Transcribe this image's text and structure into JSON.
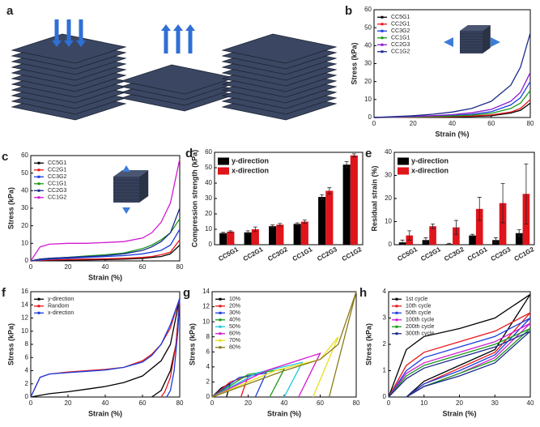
{
  "illustration": {
    "panel": "a"
  },
  "chart_data": [
    {
      "panel": "b",
      "type": "line",
      "xlabel": "Strain (%)",
      "ylabel": "Stress (kPa)",
      "xlim": [
        0,
        80
      ],
      "xticks": [
        0,
        20,
        40,
        60,
        80
      ],
      "ylim": [
        0,
        60
      ],
      "yticks": [
        0,
        10,
        20,
        30,
        40,
        50,
        60
      ],
      "legend": "upper left",
      "series": [
        {
          "name": "CC5G1",
          "color": "#000000",
          "x": [
            0,
            10,
            20,
            30,
            40,
            50,
            60,
            70,
            75,
            80
          ],
          "values": [
            0,
            0.1,
            0.2,
            0.3,
            0.4,
            0.6,
            1,
            2.5,
            4,
            8
          ]
        },
        {
          "name": "CC2G1",
          "color": "#e8161b",
          "x": [
            0,
            10,
            20,
            30,
            40,
            50,
            60,
            70,
            75,
            80
          ],
          "values": [
            0,
            0.1,
            0.2,
            0.3,
            0.5,
            0.8,
            1.4,
            3,
            5,
            10
          ]
        },
        {
          "name": "CC3G2",
          "color": "#1a3ee0",
          "x": [
            0,
            10,
            20,
            30,
            40,
            50,
            60,
            70,
            75,
            80
          ],
          "values": [
            0,
            0.2,
            0.4,
            0.7,
            1.1,
            1.8,
            3.2,
            7,
            11,
            20
          ]
        },
        {
          "name": "CC1G1",
          "color": "#1a9a1a",
          "x": [
            0,
            10,
            20,
            30,
            40,
            50,
            60,
            70,
            75,
            80
          ],
          "values": [
            0,
            0.2,
            0.3,
            0.5,
            0.8,
            1.3,
            2.3,
            5,
            8,
            15
          ]
        },
        {
          "name": "CC2G3",
          "color": "#8a1ad0",
          "x": [
            0,
            10,
            20,
            30,
            40,
            50,
            60,
            70,
            75,
            80
          ],
          "values": [
            0,
            0.3,
            0.6,
            1,
            1.6,
            2.6,
            4.5,
            9,
            14,
            25
          ]
        },
        {
          "name": "CC1G2",
          "color": "#1a2a8a",
          "x": [
            0,
            10,
            20,
            30,
            40,
            50,
            60,
            70,
            75,
            80
          ],
          "values": [
            0,
            0.5,
            1,
            1.8,
            3,
            5,
            9,
            18,
            28,
            47
          ]
        }
      ]
    },
    {
      "panel": "c",
      "type": "line",
      "xlabel": "Strain (%)",
      "ylabel": "Stress (kPa)",
      "xlim": [
        0,
        80
      ],
      "xticks": [
        0,
        20,
        40,
        60,
        80
      ],
      "ylim": [
        0,
        60
      ],
      "yticks": [
        0,
        10,
        20,
        30,
        40,
        50,
        60
      ],
      "legend": "upper left",
      "series": [
        {
          "name": "CC5G1",
          "color": "#000000",
          "x": [
            0,
            5,
            10,
            20,
            30,
            40,
            50,
            60,
            65,
            70,
            75,
            80
          ],
          "values": [
            0,
            0.2,
            0.3,
            0.5,
            0.6,
            0.8,
            1,
            1.5,
            2,
            2.5,
            4,
            9
          ]
        },
        {
          "name": "CC2G1",
          "color": "#e8161b",
          "x": [
            0,
            5,
            10,
            20,
            30,
            40,
            50,
            60,
            65,
            70,
            75,
            80
          ],
          "values": [
            0,
            0.3,
            0.5,
            0.8,
            1,
            1.2,
            1.5,
            2,
            2.5,
            3.5,
            5,
            12
          ]
        },
        {
          "name": "CC3G2",
          "color": "#1a3ee0",
          "x": [
            0,
            5,
            10,
            20,
            30,
            40,
            50,
            60,
            65,
            70,
            75,
            80
          ],
          "values": [
            0,
            0.5,
            1,
            1.5,
            2,
            2.5,
            3,
            4,
            5,
            6,
            9,
            18
          ]
        },
        {
          "name": "CC1G1",
          "color": "#1a9a1a",
          "x": [
            0,
            5,
            10,
            20,
            30,
            40,
            50,
            60,
            65,
            70,
            75,
            80
          ],
          "values": [
            0,
            1,
            1.5,
            2,
            2.8,
            3.5,
            4.5,
            7,
            9,
            12,
            16,
            24
          ]
        },
        {
          "name": "CC2G3",
          "color": "#1a2a8a",
          "x": [
            0,
            5,
            10,
            20,
            30,
            40,
            50,
            60,
            65,
            70,
            75,
            80
          ],
          "values": [
            0,
            1,
            1.5,
            2,
            2.5,
            3,
            4,
            6,
            8,
            11,
            16,
            30
          ]
        },
        {
          "name": "CC1G2",
          "color": "#d21ad2",
          "x": [
            0,
            5,
            10,
            20,
            30,
            40,
            50,
            60,
            65,
            70,
            75,
            80
          ],
          "values": [
            0,
            8,
            9.5,
            10,
            10,
            10.5,
            11,
            13,
            16,
            22,
            33,
            58
          ]
        }
      ]
    },
    {
      "panel": "d",
      "type": "bar",
      "ylabel": "Compression strength (kPa)",
      "ylim": [
        0,
        60
      ],
      "yticks": [
        0,
        10,
        20,
        30,
        40,
        50,
        60
      ],
      "legend": "upper left",
      "categories": [
        "CC5G1",
        "CC2G1",
        "CC3G2",
        "CC1G1",
        "CC2G3",
        "CC1G2"
      ],
      "series": [
        {
          "name": "y-direction",
          "color": "#000000",
          "values": [
            7.5,
            8,
            12,
            13.5,
            31,
            52
          ],
          "errors": [
            0.5,
            1,
            0.8,
            0.7,
            1.5,
            2
          ]
        },
        {
          "name": "x-direction",
          "color": "#e0141b",
          "values": [
            8.5,
            10,
            13,
            15,
            35,
            58
          ],
          "errors": [
            0.5,
            1.5,
            0.8,
            1,
            2,
            1
          ]
        }
      ]
    },
    {
      "panel": "e",
      "type": "bar",
      "ylabel": "Residual strain (%)",
      "ylim": [
        0,
        40
      ],
      "yticks": [
        0,
        10,
        20,
        30,
        40
      ],
      "legend": "upper left",
      "categories": [
        "CC5G1",
        "CC2G1",
        "CC3G2",
        "CC1G1",
        "CC2G3",
        "CC1G2"
      ],
      "series": [
        {
          "name": "y-direction",
          "color": "#000000",
          "values": [
            1,
            2,
            0.3,
            4,
            2,
            5
          ],
          "errors": [
            1,
            1,
            0.3,
            0.5,
            1,
            1.5
          ]
        },
        {
          "name": "x-direction",
          "color": "#e0141b",
          "values": [
            4,
            8,
            7.5,
            15.5,
            18,
            22
          ],
          "errors": [
            2,
            1,
            3,
            5,
            8.5,
            13
          ]
        }
      ]
    },
    {
      "panel": "f",
      "type": "line",
      "xlabel": "Strain (%)",
      "ylabel": "Stress (kPa)",
      "xlim": [
        0,
        80
      ],
      "xticks": [
        0,
        20,
        40,
        60,
        80
      ],
      "ylim": [
        0,
        16
      ],
      "yticks": [
        0,
        2,
        4,
        6,
        8,
        10,
        12,
        14,
        16
      ],
      "legend": "upper left",
      "series": [
        {
          "name": "y-direction",
          "color": "#000000",
          "x": [
            0,
            10,
            20,
            30,
            40,
            50,
            60,
            70,
            75,
            80,
            78,
            75,
            70,
            65
          ],
          "values": [
            0,
            0.5,
            0.8,
            1.2,
            1.6,
            2.2,
            3.2,
            5.5,
            8,
            15,
            8,
            4,
            1,
            0
          ]
        },
        {
          "name": "Random",
          "color": "#e8161b",
          "x": [
            0,
            5,
            10,
            20,
            30,
            40,
            50,
            60,
            65,
            70,
            75,
            80,
            78,
            75,
            72,
            70
          ],
          "values": [
            0,
            3,
            3.5,
            3.8,
            4,
            4.2,
            4.5,
            5.5,
            6.5,
            8,
            10.5,
            15,
            8,
            3,
            0.8,
            0
          ]
        },
        {
          "name": "x-direction",
          "color": "#1a3ee0",
          "x": [
            0,
            5,
            10,
            20,
            30,
            40,
            50,
            60,
            65,
            70,
            75,
            80,
            79,
            77,
            75,
            73
          ],
          "values": [
            0,
            3,
            3.5,
            3.7,
            3.9,
            4.1,
            4.5,
            5.3,
            6.3,
            8,
            11,
            15,
            10,
            4,
            1,
            0
          ]
        }
      ]
    },
    {
      "panel": "g",
      "type": "line",
      "xlabel": "Strain (%)",
      "ylabel": "Stress (kPa)",
      "xlim": [
        0,
        80
      ],
      "xticks": [
        0,
        20,
        40,
        60,
        80
      ],
      "ylim": [
        0,
        14
      ],
      "yticks": [
        0,
        2,
        4,
        6,
        8,
        10,
        12,
        14
      ],
      "legend": "upper left",
      "series": [
        {
          "name": "10%",
          "color": "#000000",
          "x": [
            0,
            5,
            10,
            8
          ],
          "values": [
            0,
            1.2,
            1.8,
            0
          ]
        },
        {
          "name": "20%",
          "color": "#e8161b",
          "x": [
            0,
            10,
            20,
            16
          ],
          "values": [
            0,
            2,
            2.8,
            0
          ]
        },
        {
          "name": "30%",
          "color": "#1a3ee0",
          "x": [
            0,
            15,
            30,
            24
          ],
          "values": [
            0,
            2.6,
            3.2,
            0
          ]
        },
        {
          "name": "40%",
          "color": "#1a9a1a",
          "x": [
            0,
            20,
            40,
            32
          ],
          "values": [
            0,
            3,
            3.7,
            0
          ]
        },
        {
          "name": "50%",
          "color": "#18c8e0",
          "x": [
            0,
            25,
            50,
            40
          ],
          "values": [
            0,
            3.2,
            4.6,
            0
          ]
        },
        {
          "name": "60%",
          "color": "#d21ad2",
          "x": [
            0,
            30,
            60,
            48
          ],
          "values": [
            0,
            3.5,
            5.8,
            0
          ]
        },
        {
          "name": "70%",
          "color": "#e8e01a",
          "x": [
            0,
            35,
            60,
            70,
            56
          ],
          "values": [
            0,
            3.5,
            5,
            8,
            0
          ]
        },
        {
          "name": "80%",
          "color": "#8a7a1a",
          "x": [
            0,
            40,
            60,
            70,
            80,
            65
          ],
          "values": [
            0,
            3.5,
            5,
            7,
            14,
            0
          ]
        }
      ]
    },
    {
      "panel": "h",
      "type": "line",
      "xlabel": "Strain (%)",
      "ylabel": "Stress (kPa)",
      "xlim": [
        0,
        40
      ],
      "xticks": [
        0,
        10,
        20,
        30,
        40
      ],
      "ylim": [
        0,
        4
      ],
      "yticks": [
        0,
        1,
        2,
        3,
        4
      ],
      "legend": "upper left",
      "series": [
        {
          "name": "1st cycle",
          "color": "#000000",
          "x": [
            0,
            5,
            10,
            20,
            30,
            40,
            30,
            20,
            10,
            5
          ],
          "values": [
            0,
            1.8,
            2.3,
            2.6,
            3,
            3.9,
            1.8,
            1.2,
            0.6,
            0
          ]
        },
        {
          "name": "10th cycle",
          "color": "#e8161b",
          "x": [
            0,
            5,
            10,
            20,
            30,
            40,
            30,
            20,
            10,
            5
          ],
          "values": [
            0,
            1.2,
            1.7,
            2.1,
            2.5,
            3.2,
            1.7,
            1.1,
            0.5,
            0
          ]
        },
        {
          "name": "50th cycle",
          "color": "#1a3ee0",
          "x": [
            0,
            5,
            10,
            20,
            30,
            40,
            30,
            20,
            10,
            5
          ],
          "values": [
            0,
            1,
            1.5,
            1.9,
            2.3,
            3,
            1.6,
            1,
            0.5,
            0
          ]
        },
        {
          "name": "100th cycle",
          "color": "#d21ad2",
          "x": [
            0,
            5,
            10,
            20,
            30,
            40,
            30,
            20,
            10,
            5
          ],
          "values": [
            0,
            0.9,
            1.3,
            1.7,
            2.1,
            2.8,
            1.5,
            0.9,
            0.4,
            0
          ]
        },
        {
          "name": "200th cycle",
          "color": "#1a9a1a",
          "x": [
            0,
            5,
            10,
            20,
            30,
            40,
            30,
            20,
            10,
            5
          ],
          "values": [
            0,
            0.8,
            1.2,
            1.6,
            2,
            2.6,
            1.4,
            0.9,
            0.4,
            0
          ]
        },
        {
          "name": "300th cycle",
          "color": "#1a2a8a",
          "x": [
            0,
            5,
            10,
            20,
            30,
            40,
            30,
            20,
            10,
            5
          ],
          "values": [
            0,
            0.7,
            1.1,
            1.5,
            1.9,
            2.5,
            1.3,
            0.8,
            0.4,
            0
          ]
        }
      ]
    }
  ]
}
